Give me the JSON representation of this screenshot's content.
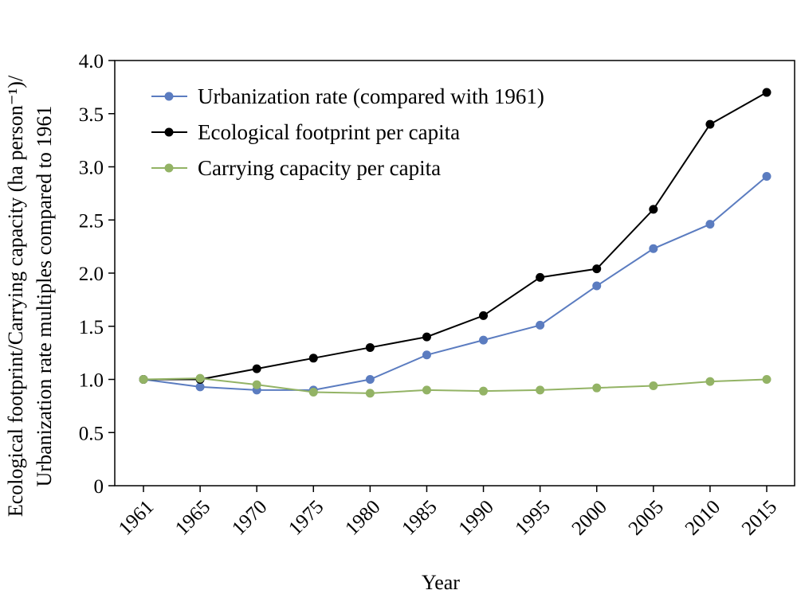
{
  "chart_data": {
    "type": "line",
    "xlabel": "Year",
    "ylabel": [
      "Ecological footprint/Carrying capacity (ha person⁻¹)/",
      "Urbanization rate multiples compared to 1961"
    ],
    "categories": [
      "1961",
      "1965",
      "1970",
      "1975",
      "1980",
      "1985",
      "1990",
      "1995",
      "2000",
      "2005",
      "2010",
      "2015"
    ],
    "ylim": [
      0,
      4.0
    ],
    "yticks": [
      "0",
      "0.5",
      "1.0",
      "1.5",
      "2.0",
      "2.5",
      "3.0",
      "3.5",
      "4.0"
    ],
    "grid": false,
    "legend_position": "top-left",
    "series": [
      {
        "name": "Urbanization rate (compared with 1961)",
        "color": "#5b7cc0",
        "values": [
          1.0,
          0.93,
          0.9,
          0.9,
          1.0,
          1.23,
          1.37,
          1.51,
          1.88,
          2.23,
          2.46,
          2.91
        ]
      },
      {
        "name": "Ecological footprint per capita",
        "color": "#000000",
        "values": [
          1.0,
          1.0,
          1.1,
          1.2,
          1.3,
          1.4,
          1.6,
          1.96,
          2.04,
          2.6,
          3.4,
          3.7
        ]
      },
      {
        "name": "Carrying capacity per capita",
        "color": "#93b365",
        "values": [
          1.0,
          1.01,
          0.95,
          0.88,
          0.87,
          0.9,
          0.89,
          0.9,
          0.92,
          0.94,
          0.98,
          1.0
        ]
      }
    ]
  }
}
